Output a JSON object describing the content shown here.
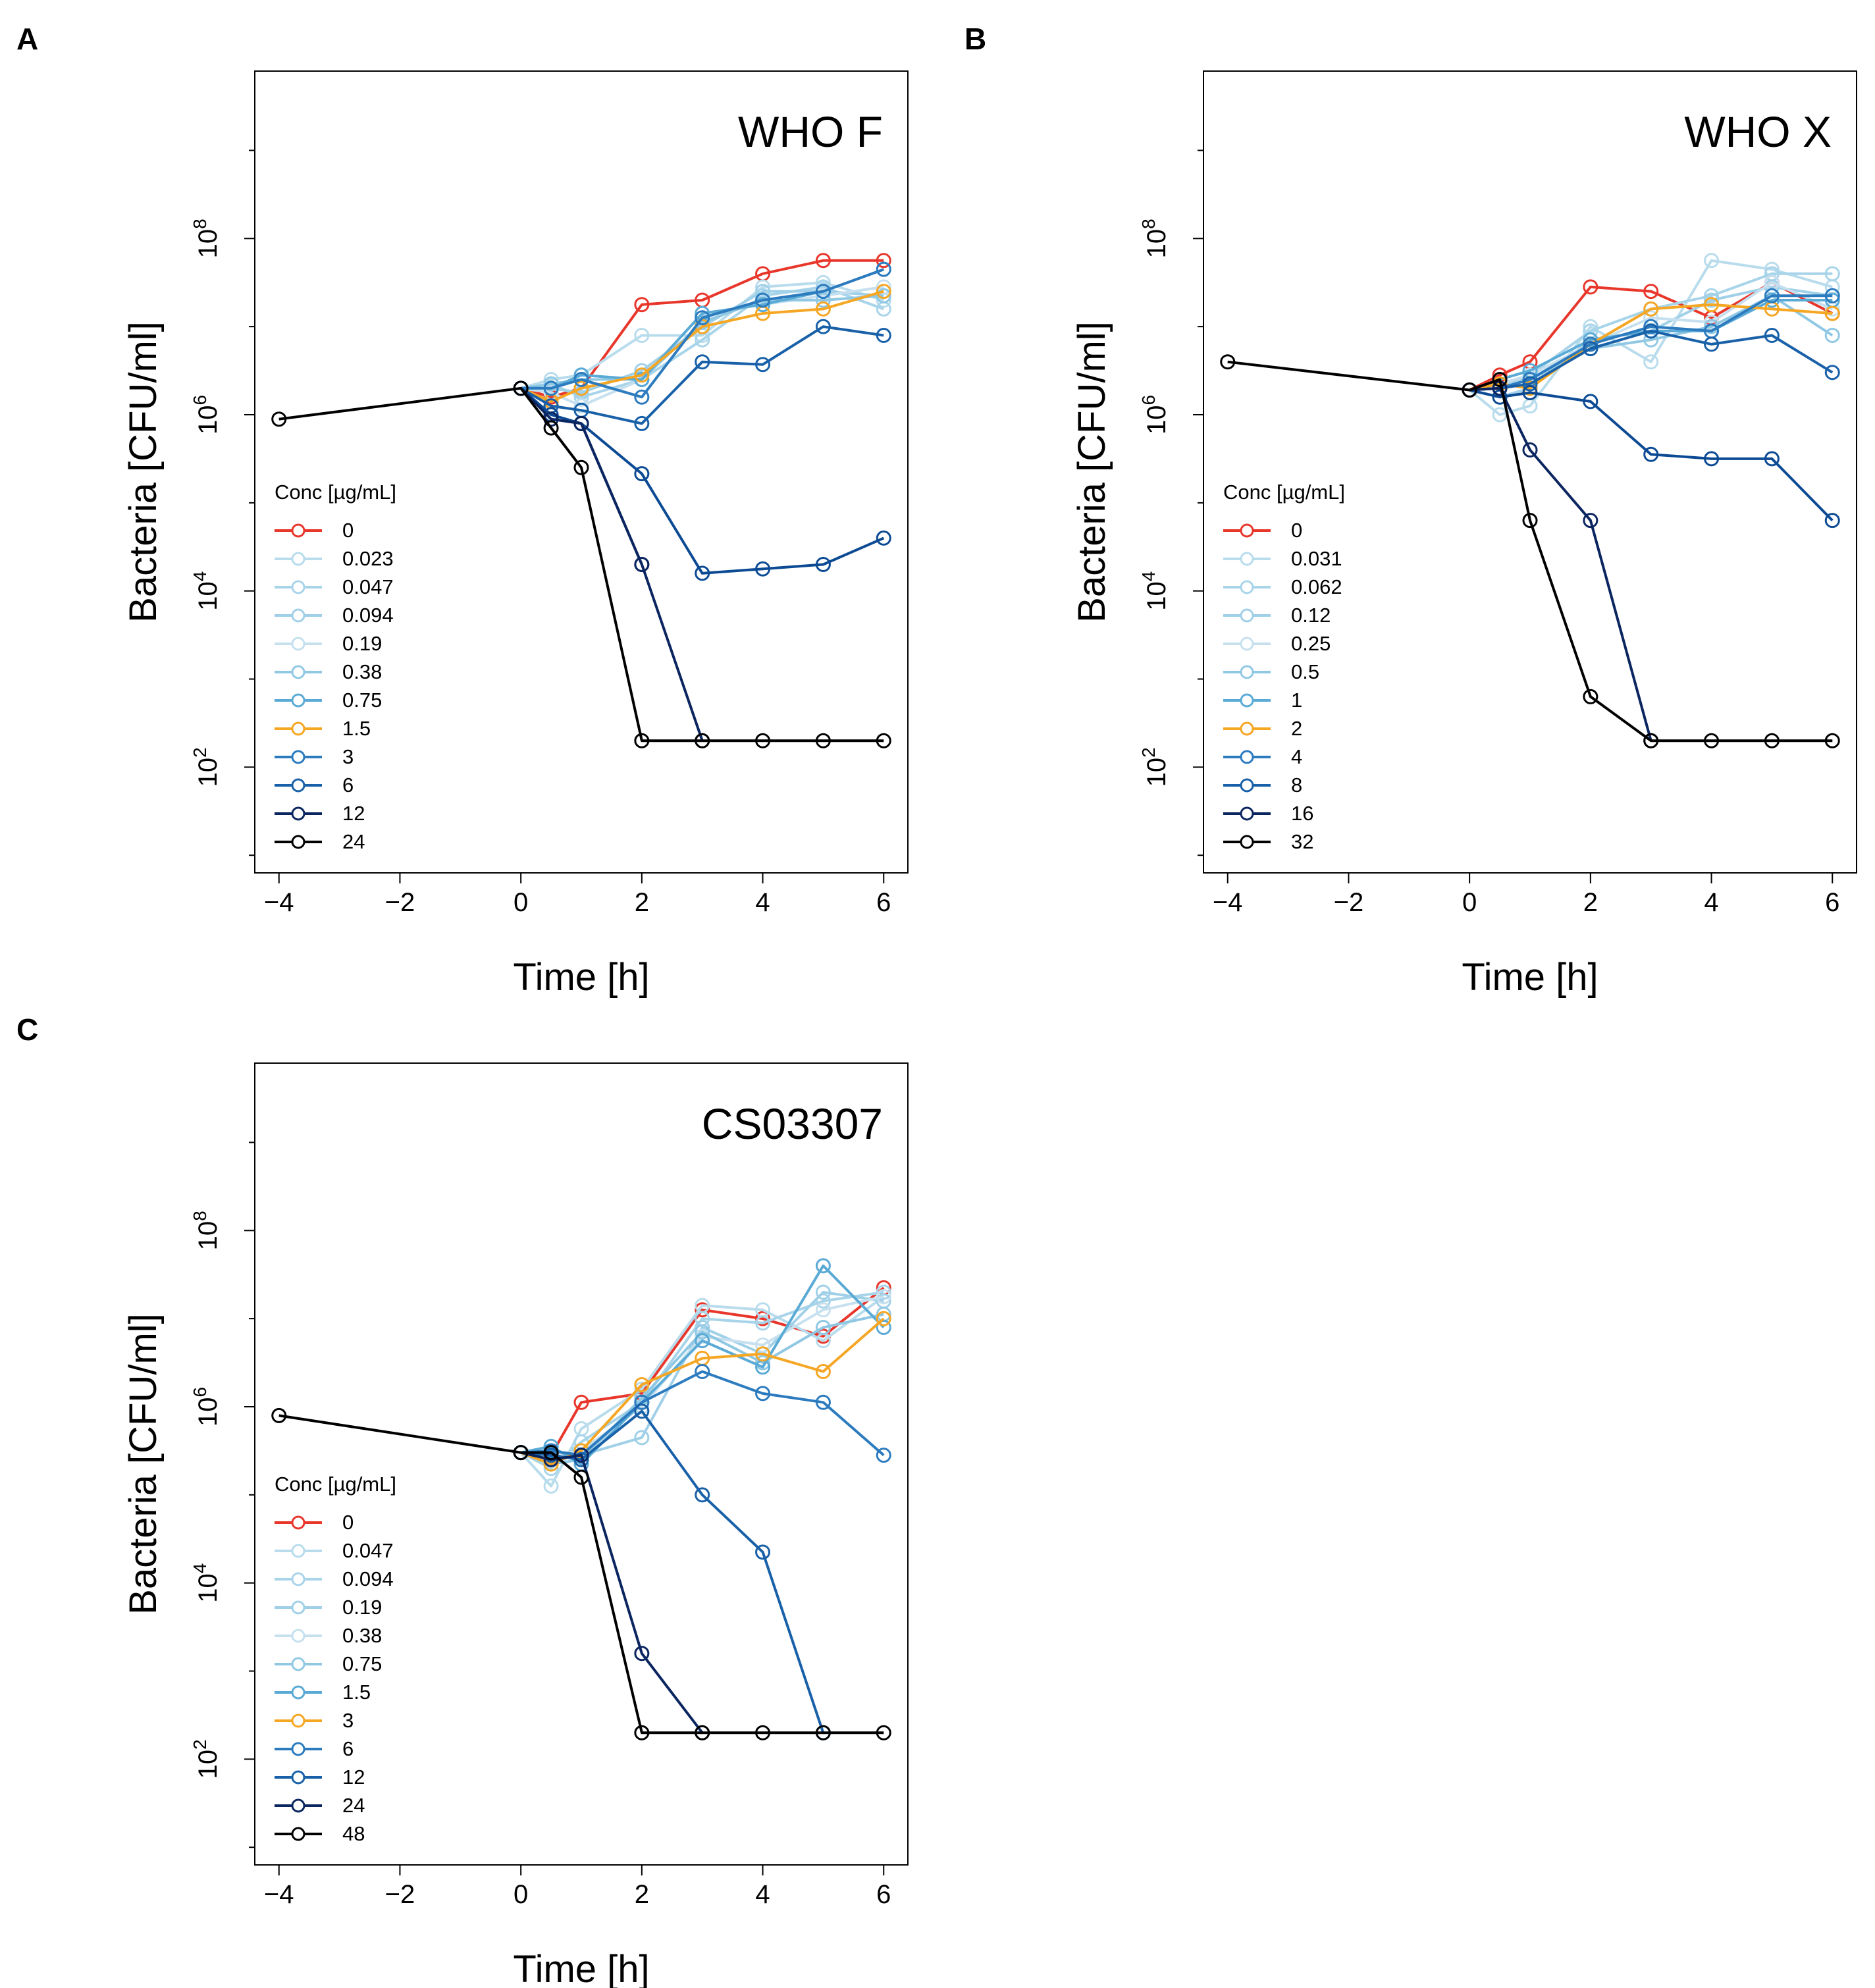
{
  "shared": {
    "xlabel": "Time [h]",
    "ylabel": "Bacteria [CFU/ml]",
    "legend_title": "Conc [µg/mL]",
    "xticks": [
      -4,
      -2,
      0,
      2,
      4,
      6
    ],
    "xlim": [
      -4.4,
      6.4
    ],
    "ylim_log10": [
      0.8,
      9.9
    ],
    "ytick_exponents": [
      2,
      4,
      6,
      8
    ],
    "ytick_base": "10",
    "minor_log10": [
      1,
      3,
      5,
      7,
      9
    ],
    "x_minus": "−"
  },
  "chart_data": [
    {
      "type": "line",
      "panel_label": "A",
      "title": "WHO F",
      "xlabel": "Time [h]",
      "ylabel": "Bacteria [CFU/ml]",
      "yscale": "log10",
      "legend_placement": "lower-left",
      "series": [
        {
          "name": "0",
          "color": "#e8362b",
          "x": [
            0,
            0.5,
            1,
            2,
            3,
            4,
            5,
            6
          ],
          "log10_y": [
            6.3,
            6.2,
            6.3,
            7.25,
            7.3,
            7.6,
            7.75,
            7.75
          ]
        },
        {
          "name": "0.023",
          "color": "#b8dcec",
          "x": [
            0,
            0.5,
            1,
            2,
            3,
            4,
            5,
            6
          ],
          "log10_y": [
            6.3,
            6.4,
            6.45,
            6.9,
            6.9,
            7.45,
            7.5,
            7.3
          ]
        },
        {
          "name": "0.047",
          "color": "#a8d4ea",
          "x": [
            0,
            0.5,
            1,
            2,
            3,
            4,
            5,
            6
          ],
          "log10_y": [
            6.3,
            6.35,
            6.2,
            6.4,
            6.85,
            7.35,
            7.45,
            7.2
          ]
        },
        {
          "name": "0.094",
          "color": "#a0d0e8",
          "x": [
            0,
            0.5,
            1,
            2,
            3,
            4,
            5,
            6
          ],
          "log10_y": [
            6.3,
            6.3,
            6.25,
            6.5,
            7.0,
            7.4,
            7.4,
            7.35
          ]
        },
        {
          "name": "0.19",
          "color": "#c6e0ef",
          "x": [
            0,
            0.5,
            1,
            2,
            3,
            4,
            5,
            6
          ],
          "log10_y": [
            6.3,
            6.25,
            6.1,
            6.4,
            7.15,
            7.25,
            7.35,
            7.45
          ]
        },
        {
          "name": "0.38",
          "color": "#90c8e4",
          "x": [
            0,
            0.5,
            1,
            2,
            3,
            4,
            5,
            6
          ],
          "log10_y": [
            6.3,
            6.35,
            6.4,
            6.4,
            7.05,
            7.3,
            7.3,
            7.35
          ]
        },
        {
          "name": "0.75",
          "color": "#5aaad6",
          "x": [
            0,
            0.5,
            1,
            2,
            3,
            4,
            5,
            6
          ],
          "log10_y": [
            6.3,
            6.3,
            6.45,
            6.4,
            7.15,
            7.25,
            7.4,
            7.65
          ]
        },
        {
          "name": "1.5",
          "color": "#f5a623",
          "x": [
            0,
            0.5,
            1,
            2,
            3,
            4,
            5,
            6
          ],
          "log10_y": [
            6.3,
            6.15,
            6.3,
            6.45,
            7.0,
            7.15,
            7.2,
            7.4
          ]
        },
        {
          "name": "3",
          "color": "#2c7bbf",
          "x": [
            0,
            0.5,
            1,
            2,
            3,
            4,
            5,
            6
          ],
          "log10_y": [
            6.3,
            6.3,
            6.4,
            6.2,
            7.1,
            7.3,
            7.4,
            7.65
          ]
        },
        {
          "name": "6",
          "color": "#1860a8",
          "x": [
            0,
            0.5,
            1,
            2,
            3,
            4,
            5,
            6
          ],
          "log10_y": [
            6.3,
            6.1,
            6.05,
            5.9,
            6.6,
            6.57,
            7.0,
            6.9
          ]
        },
        {
          "name": "12",
          "color": "#0c4a94",
          "x": [
            0,
            0.5,
            1,
            2,
            3,
            4,
            5,
            6
          ],
          "log10_y": [
            6.3,
            6.0,
            5.9,
            5.33,
            4.2,
            4.25,
            4.3,
            4.6
          ]
        },
        {
          "name": "24",
          "color": "#0b2560",
          "x": [
            0,
            0.5,
            1,
            2,
            3
          ],
          "log10_y": [
            6.3,
            5.95,
            5.9,
            4.3,
            2.3
          ]
        },
        {
          "name": "",
          "color": "#0b2560",
          "x": [
            1,
            2
          ],
          "log10_y": [
            5.9,
            4.3
          ]
        },
        {
          "name": "24",
          "color": "#000000",
          "x": [
            -4,
            0,
            0.5,
            1,
            2,
            3,
            4,
            5,
            6
          ],
          "log10_y": [
            5.95,
            6.3,
            5.85,
            5.4,
            2.3,
            2.3,
            2.3,
            2.3,
            2.3
          ]
        }
      ],
      "legend": [
        {
          "label": "0",
          "color": "#e8362b"
        },
        {
          "label": "0.023",
          "color": "#b8dcec"
        },
        {
          "label": "0.047",
          "color": "#a8d4ea"
        },
        {
          "label": "0.094",
          "color": "#a0d0e8"
        },
        {
          "label": "0.19",
          "color": "#c6e0ef"
        },
        {
          "label": "0.38",
          "color": "#90c8e4"
        },
        {
          "label": "0.75",
          "color": "#5aaad6"
        },
        {
          "label": "1.5",
          "color": "#f5a623"
        },
        {
          "label": "3",
          "color": "#2c7bbf"
        },
        {
          "label": "6",
          "color": "#1860a8"
        },
        {
          "label": "12",
          "color": "#0b2560"
        },
        {
          "label": "24",
          "color": "#000000"
        }
      ]
    },
    {
      "type": "line",
      "panel_label": "B",
      "title": "WHO X",
      "xlabel": "Time [h]",
      "ylabel": "Bacteria [CFU/ml]",
      "yscale": "log10",
      "legend_placement": "lower-left",
      "series": [
        {
          "name": "0",
          "color": "#e8362b",
          "x": [
            0,
            0.5,
            1,
            2,
            3,
            4,
            5,
            6
          ],
          "log10_y": [
            6.28,
            6.45,
            6.6,
            7.45,
            7.4,
            7.1,
            7.5,
            7.15
          ]
        },
        {
          "name": "0.031",
          "color": "#b8dcec",
          "x": [
            0,
            0.5,
            1,
            2,
            3,
            4,
            5,
            6
          ],
          "log10_y": [
            6.28,
            6.0,
            6.1,
            7.0,
            6.6,
            7.75,
            7.65,
            7.45
          ]
        },
        {
          "name": "0.062",
          "color": "#a8d4ea",
          "x": [
            0,
            0.5,
            1,
            2,
            3,
            4,
            5,
            6
          ],
          "log10_y": [
            6.28,
            6.3,
            6.45,
            6.95,
            7.2,
            7.35,
            7.6,
            7.6
          ]
        },
        {
          "name": "0.12",
          "color": "#a0d0e8",
          "x": [
            0,
            0.5,
            1,
            2,
            3,
            4,
            5,
            6
          ],
          "log10_y": [
            6.28,
            6.2,
            6.3,
            6.85,
            6.95,
            7.3,
            7.45,
            7.35
          ]
        },
        {
          "name": "0.25",
          "color": "#c6e0ef",
          "x": [
            0,
            0.5,
            1,
            2,
            3,
            4,
            5,
            6
          ],
          "log10_y": [
            6.28,
            6.35,
            6.45,
            6.8,
            7.1,
            7.05,
            7.5,
            7.2
          ]
        },
        {
          "name": "0.5",
          "color": "#90c8e4",
          "x": [
            0,
            0.5,
            1,
            2,
            3,
            4,
            5,
            6
          ],
          "log10_y": [
            6.28,
            6.3,
            6.4,
            6.75,
            6.85,
            7.0,
            7.35,
            6.9
          ]
        },
        {
          "name": "1",
          "color": "#5aaad6",
          "x": [
            0,
            0.5,
            1,
            2,
            3,
            4,
            5,
            6
          ],
          "log10_y": [
            6.28,
            6.4,
            6.5,
            6.85,
            6.95,
            6.95,
            7.3,
            7.3
          ]
        },
        {
          "name": "2",
          "color": "#f5a623",
          "x": [
            0,
            0.5,
            1,
            2,
            3,
            4,
            5,
            6
          ],
          "log10_y": [
            6.28,
            6.35,
            6.3,
            6.8,
            7.2,
            7.25,
            7.2,
            7.15
          ]
        },
        {
          "name": "4",
          "color": "#2c7bbf",
          "x": [
            0,
            0.5,
            1,
            2,
            3,
            4,
            5,
            6
          ],
          "log10_y": [
            6.28,
            6.3,
            6.4,
            6.8,
            7.0,
            6.95,
            7.35,
            7.35
          ]
        },
        {
          "name": "8",
          "color": "#1860a8",
          "x": [
            0,
            0.5,
            1,
            2,
            3,
            4,
            5,
            6
          ],
          "log10_y": [
            6.28,
            6.3,
            6.35,
            6.75,
            6.95,
            6.8,
            6.9,
            6.48
          ]
        },
        {
          "name": "16",
          "color": "#0c4a94",
          "x": [
            0,
            0.5,
            1,
            2,
            3,
            4,
            5,
            6
          ],
          "log10_y": [
            6.28,
            6.2,
            6.25,
            6.15,
            5.55,
            5.5,
            5.5,
            4.8
          ]
        },
        {
          "name": "16",
          "color": "#0b2560",
          "x": [
            0,
            0.5,
            1,
            2,
            3
          ],
          "log10_y": [
            6.28,
            6.3,
            5.6,
            4.8,
            2.3
          ]
        },
        {
          "name": "32",
          "color": "#000000",
          "x": [
            -4,
            0,
            0.5,
            1,
            2,
            3,
            4,
            5,
            6
          ],
          "log10_y": [
            6.6,
            6.28,
            6.4,
            4.8,
            2.8,
            2.3,
            2.3,
            2.3,
            2.3
          ]
        }
      ],
      "legend": [
        {
          "label": "0",
          "color": "#e8362b"
        },
        {
          "label": "0.031",
          "color": "#b8dcec"
        },
        {
          "label": "0.062",
          "color": "#a8d4ea"
        },
        {
          "label": "0.12",
          "color": "#a0d0e8"
        },
        {
          "label": "0.25",
          "color": "#c6e0ef"
        },
        {
          "label": "0.5",
          "color": "#90c8e4"
        },
        {
          "label": "1",
          "color": "#5aaad6"
        },
        {
          "label": "2",
          "color": "#f5a623"
        },
        {
          "label": "4",
          "color": "#2c7bbf"
        },
        {
          "label": "8",
          "color": "#1860a8"
        },
        {
          "label": "16",
          "color": "#0b2560"
        },
        {
          "label": "32",
          "color": "#000000"
        }
      ]
    },
    {
      "type": "line",
      "panel_label": "C",
      "title": "CS03307",
      "xlabel": "Time [h]",
      "ylabel": "Bacteria [CFU/ml]",
      "yscale": "log10",
      "legend_placement": "lower-left",
      "series": [
        {
          "name": "0",
          "color": "#e8362b",
          "x": [
            0,
            0.5,
            1,
            2,
            3,
            4,
            5,
            6
          ],
          "log10_y": [
            5.48,
            5.45,
            6.05,
            6.15,
            7.1,
            7.0,
            6.8,
            7.35
          ]
        },
        {
          "name": "0.047",
          "color": "#b8dcec",
          "x": [
            0,
            0.5,
            1,
            2,
            3,
            4,
            5,
            6
          ],
          "log10_y": [
            5.48,
            5.1,
            5.75,
            6.2,
            7.15,
            7.1,
            6.75,
            7.25
          ]
        },
        {
          "name": "0.094",
          "color": "#a8d4ea",
          "x": [
            0,
            0.5,
            1,
            2,
            3,
            4,
            5,
            6
          ],
          "log10_y": [
            5.48,
            5.3,
            5.6,
            6.05,
            7.0,
            6.95,
            7.2,
            7.3
          ]
        },
        {
          "name": "0.19",
          "color": "#a0d0e8",
          "x": [
            0,
            0.5,
            1,
            2,
            3,
            4,
            5,
            6
          ],
          "log10_y": [
            5.48,
            5.4,
            5.45,
            5.65,
            6.9,
            6.6,
            7.3,
            7.2
          ]
        },
        {
          "name": "0.38",
          "color": "#c6e0ef",
          "x": [
            0,
            0.5,
            1,
            2,
            3,
            4,
            5,
            6
          ],
          "log10_y": [
            5.48,
            5.45,
            5.5,
            6.0,
            6.8,
            6.7,
            7.1,
            7.25
          ]
        },
        {
          "name": "0.75",
          "color": "#90c8e4",
          "x": [
            0,
            0.5,
            1,
            2,
            3,
            4,
            5,
            6
          ],
          "log10_y": [
            5.48,
            5.35,
            5.4,
            6.1,
            6.85,
            6.5,
            6.9,
            7.05
          ]
        },
        {
          "name": "1.5",
          "color": "#5aaad6",
          "x": [
            0,
            0.5,
            1,
            2,
            3,
            4,
            5,
            6
          ],
          "log10_y": [
            5.48,
            5.55,
            5.35,
            6.05,
            6.75,
            6.45,
            7.6,
            6.9
          ]
        },
        {
          "name": "3",
          "color": "#f5a623",
          "x": [
            0,
            0.5,
            1,
            2,
            3,
            4,
            5,
            6
          ],
          "log10_y": [
            5.48,
            5.35,
            5.5,
            6.25,
            6.55,
            6.6,
            6.4,
            7.0
          ]
        },
        {
          "name": "6",
          "color": "#2c7bbf",
          "x": [
            0,
            0.5,
            1,
            2,
            3,
            4,
            5,
            6
          ],
          "log10_y": [
            5.48,
            5.5,
            5.45,
            6.05,
            6.4,
            6.15,
            6.05,
            5.45
          ]
        },
        {
          "name": "12",
          "color": "#1860a8",
          "x": [
            0,
            0.5,
            1,
            2,
            3,
            4,
            5
          ],
          "log10_y": [
            5.48,
            5.45,
            5.4,
            5.95,
            5.0,
            4.35,
            2.3
          ]
        },
        {
          "name": "24",
          "color": "#0b2560",
          "x": [
            0,
            0.5,
            1,
            2,
            3
          ],
          "log10_y": [
            5.48,
            5.4,
            5.45,
            3.2,
            2.3
          ]
        },
        {
          "name": "48",
          "color": "#000000",
          "x": [
            -4,
            0,
            0.5,
            1,
            2,
            3,
            4,
            5,
            6
          ],
          "log10_y": [
            5.9,
            5.48,
            5.48,
            5.2,
            2.3,
            2.3,
            2.3,
            2.3,
            2.3
          ]
        }
      ],
      "legend": [
        {
          "label": "0",
          "color": "#e8362b"
        },
        {
          "label": "0.047",
          "color": "#b8dcec"
        },
        {
          "label": "0.094",
          "color": "#a8d4ea"
        },
        {
          "label": "0.19",
          "color": "#a0d0e8"
        },
        {
          "label": "0.38",
          "color": "#c6e0ef"
        },
        {
          "label": "0.75",
          "color": "#90c8e4"
        },
        {
          "label": "1.5",
          "color": "#5aaad6"
        },
        {
          "label": "3",
          "color": "#f5a623"
        },
        {
          "label": "6",
          "color": "#2c7bbf"
        },
        {
          "label": "12",
          "color": "#1860a8"
        },
        {
          "label": "24",
          "color": "#0b2560"
        },
        {
          "label": "48",
          "color": "#000000"
        }
      ]
    }
  ]
}
